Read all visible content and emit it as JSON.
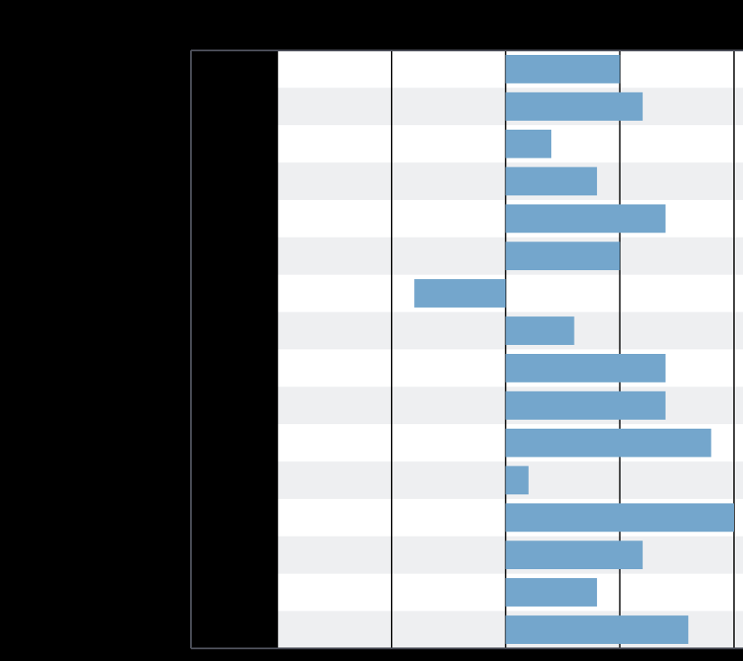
{
  "chart_data": {
    "type": "barh",
    "categories": [
      null,
      null,
      null,
      null,
      null,
      null,
      null,
      null,
      null,
      null,
      null,
      null,
      null,
      null,
      null,
      null
    ],
    "values": [
      1.0,
      1.2,
      0.4,
      0.8,
      1.4,
      1.0,
      -0.8,
      0.6,
      1.4,
      1.4,
      1.8,
      0.2,
      2.0,
      1.2,
      0.8,
      1.6
    ],
    "color": "#74a6cc",
    "xlim": [
      -2,
      2
    ],
    "xticks": [
      -2,
      -1,
      0,
      1,
      2
    ],
    "grid": true
  }
}
